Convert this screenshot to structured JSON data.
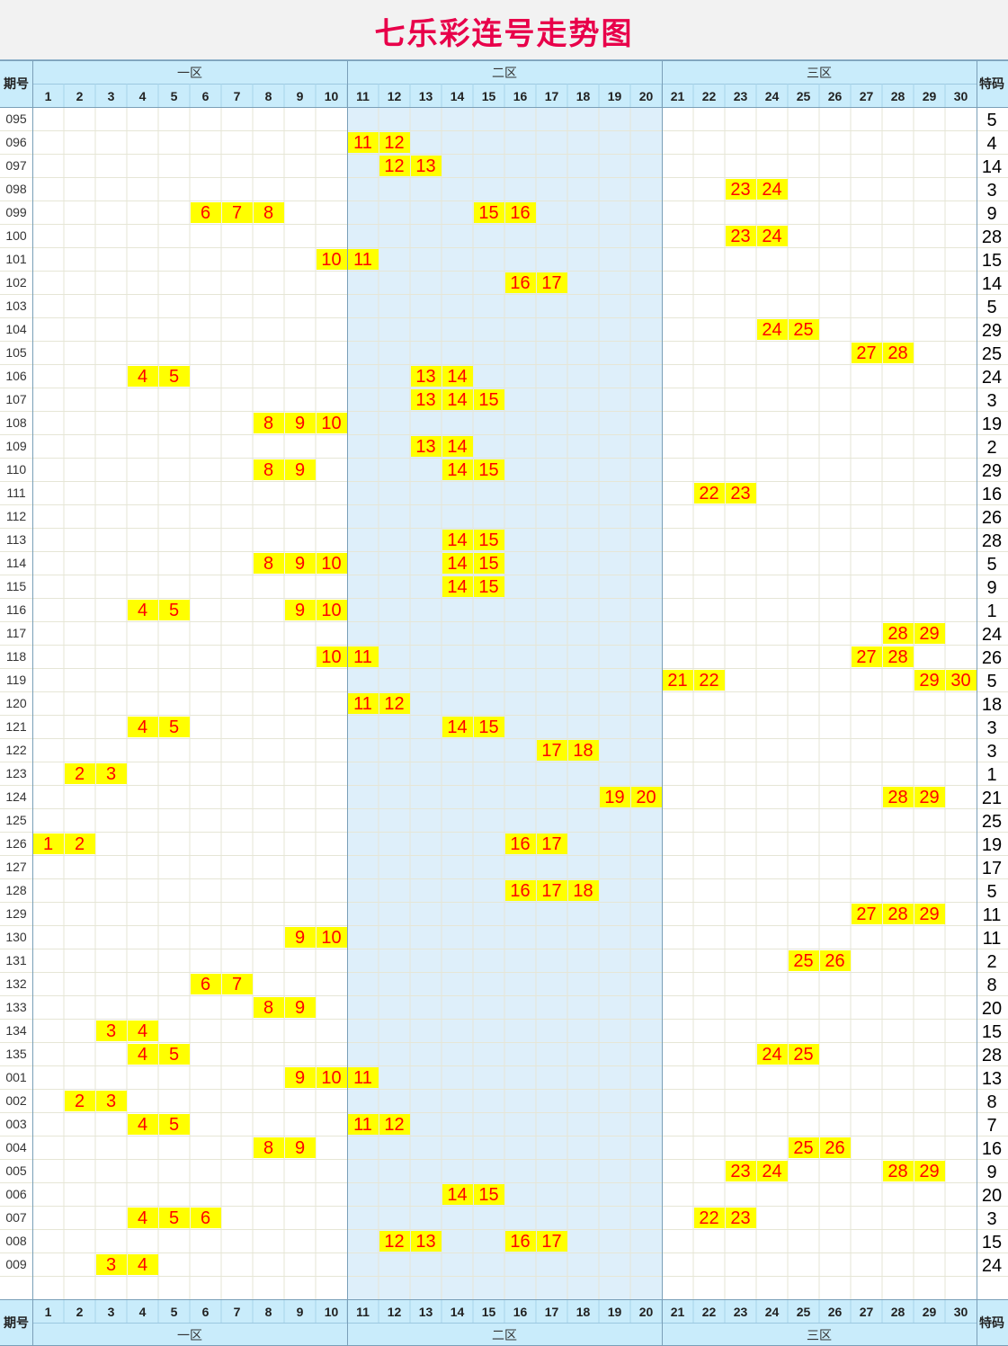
{
  "title": "七乐彩连号走势图",
  "header": {
    "period_label": "期号",
    "special_label": "特码",
    "zones": [
      "一区",
      "二区",
      "三区"
    ],
    "numbers": [
      "1",
      "2",
      "3",
      "4",
      "5",
      "6",
      "7",
      "8",
      "9",
      "10",
      "11",
      "12",
      "13",
      "14",
      "15",
      "16",
      "17",
      "18",
      "19",
      "20",
      "21",
      "22",
      "23",
      "24",
      "25",
      "26",
      "27",
      "28",
      "29",
      "30"
    ]
  },
  "colors": {
    "header_bg": "#c9ecfb",
    "zone2_bg": "#deeffa",
    "highlight_bg": "#ffff00",
    "highlight_text": "#ff0000",
    "title_text": "#e8004a",
    "grid": "#e6e6d6"
  },
  "chart_data": {
    "type": "table",
    "rows": [
      {
        "period": "095",
        "consecutive": [],
        "special": "5"
      },
      {
        "period": "096",
        "consecutive": [
          11,
          12
        ],
        "special": "4"
      },
      {
        "period": "097",
        "consecutive": [
          12,
          13
        ],
        "special": "14"
      },
      {
        "period": "098",
        "consecutive": [
          23,
          24
        ],
        "special": "3"
      },
      {
        "period": "099",
        "consecutive": [
          6,
          7,
          8,
          15,
          16
        ],
        "special": "9"
      },
      {
        "period": "100",
        "consecutive": [
          23,
          24
        ],
        "special": "28"
      },
      {
        "period": "101",
        "consecutive": [
          10,
          11
        ],
        "special": "15"
      },
      {
        "period": "102",
        "consecutive": [
          16,
          17
        ],
        "special": "14"
      },
      {
        "period": "103",
        "consecutive": [],
        "special": "5"
      },
      {
        "period": "104",
        "consecutive": [
          24,
          25
        ],
        "special": "29"
      },
      {
        "period": "105",
        "consecutive": [
          27,
          28
        ],
        "special": "25"
      },
      {
        "period": "106",
        "consecutive": [
          4,
          5,
          13,
          14
        ],
        "special": "24"
      },
      {
        "period": "107",
        "consecutive": [
          13,
          14,
          15
        ],
        "special": "3"
      },
      {
        "period": "108",
        "consecutive": [
          8,
          9,
          10
        ],
        "special": "19"
      },
      {
        "period": "109",
        "consecutive": [
          13,
          14
        ],
        "special": "2"
      },
      {
        "period": "110",
        "consecutive": [
          8,
          9,
          14,
          15
        ],
        "special": "29"
      },
      {
        "period": "111",
        "consecutive": [
          22,
          23
        ],
        "special": "16"
      },
      {
        "period": "112",
        "consecutive": [],
        "special": "26"
      },
      {
        "period": "113",
        "consecutive": [
          14,
          15
        ],
        "special": "28"
      },
      {
        "period": "114",
        "consecutive": [
          8,
          9,
          10,
          14,
          15
        ],
        "special": "5"
      },
      {
        "period": "115",
        "consecutive": [
          14,
          15
        ],
        "special": "9"
      },
      {
        "period": "116",
        "consecutive": [
          4,
          5,
          9,
          10
        ],
        "special": "1"
      },
      {
        "period": "117",
        "consecutive": [
          28,
          29
        ],
        "special": "24"
      },
      {
        "period": "118",
        "consecutive": [
          10,
          11,
          27,
          28
        ],
        "special": "26"
      },
      {
        "period": "119",
        "consecutive": [
          21,
          22,
          29,
          30
        ],
        "special": "5"
      },
      {
        "period": "120",
        "consecutive": [
          11,
          12
        ],
        "special": "18"
      },
      {
        "period": "121",
        "consecutive": [
          4,
          5,
          14,
          15
        ],
        "special": "3"
      },
      {
        "period": "122",
        "consecutive": [
          17,
          18
        ],
        "special": "3"
      },
      {
        "period": "123",
        "consecutive": [
          2,
          3
        ],
        "special": "1"
      },
      {
        "period": "124",
        "consecutive": [
          19,
          20,
          28,
          29
        ],
        "special": "21"
      },
      {
        "period": "125",
        "consecutive": [],
        "special": "25"
      },
      {
        "period": "126",
        "consecutive": [
          1,
          2,
          16,
          17
        ],
        "special": "19"
      },
      {
        "period": "127",
        "consecutive": [],
        "special": "17"
      },
      {
        "period": "128",
        "consecutive": [
          16,
          17,
          18
        ],
        "special": "5"
      },
      {
        "period": "129",
        "consecutive": [
          27,
          28,
          29
        ],
        "special": "11"
      },
      {
        "period": "130",
        "consecutive": [
          9,
          10
        ],
        "special": "11"
      },
      {
        "period": "131",
        "consecutive": [
          25,
          26
        ],
        "special": "2"
      },
      {
        "period": "132",
        "consecutive": [
          6,
          7
        ],
        "special": "8"
      },
      {
        "period": "133",
        "consecutive": [
          8,
          9
        ],
        "special": "20"
      },
      {
        "period": "134",
        "consecutive": [
          3,
          4
        ],
        "special": "15"
      },
      {
        "period": "135",
        "consecutive": [
          4,
          5,
          24,
          25
        ],
        "special": "28"
      },
      {
        "period": "001",
        "consecutive": [
          9,
          10,
          11
        ],
        "special": "13"
      },
      {
        "period": "002",
        "consecutive": [
          2,
          3
        ],
        "special": "8"
      },
      {
        "period": "003",
        "consecutive": [
          4,
          5,
          11,
          12
        ],
        "special": "7"
      },
      {
        "period": "004",
        "consecutive": [
          8,
          9,
          25,
          26
        ],
        "special": "16"
      },
      {
        "period": "005",
        "consecutive": [
          23,
          24,
          28,
          29
        ],
        "special": "9"
      },
      {
        "period": "006",
        "consecutive": [
          14,
          15
        ],
        "special": "20"
      },
      {
        "period": "007",
        "consecutive": [
          4,
          5,
          6,
          22,
          23
        ],
        "special": "3"
      },
      {
        "period": "008",
        "consecutive": [
          12,
          13,
          16,
          17
        ],
        "special": "15"
      },
      {
        "period": "009",
        "consecutive": [
          3,
          4
        ],
        "special": "24"
      }
    ]
  }
}
